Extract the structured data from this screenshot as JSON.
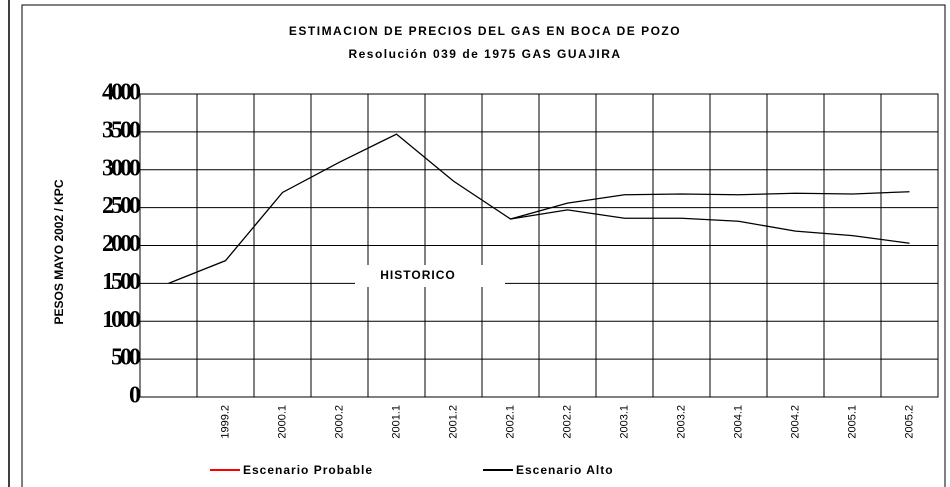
{
  "chart_data": {
    "type": "line",
    "title": "ESTIMACION DE PRECIOS DEL GAS EN BOCA DE POZO",
    "subtitle": "Resolución 039 de 1975 GAS GUAJIRA",
    "y_label": "PESOS MAYO 2002 / KPC",
    "annotation": "HISTORICO",
    "categories": [
      null,
      "1999.2",
      "2000.1",
      "2000.2",
      "2001.1",
      "2001.2",
      "2002.1",
      "2002.2",
      "2003.1",
      "2003.2",
      "2004.1",
      "2004.2",
      "2005.1",
      "2005.2"
    ],
    "series": [
      {
        "name": "Escenario Probable",
        "color": "#ff0000",
        "line_color": "#000000",
        "values": [
          null,
          null,
          null,
          null,
          null,
          null,
          2350,
          2470,
          2360,
          2360,
          2320,
          2190,
          2130,
          2030
        ]
      },
      {
        "name": "Escenario Alto",
        "color": "#000000",
        "line_color": "#000000",
        "values": [
          1500,
          1800,
          2700,
          3100,
          3470,
          2850,
          2350,
          2560,
          2670,
          2680,
          2670,
          2690,
          2680,
          2710
        ]
      }
    ],
    "ylim": [
      0,
      4000
    ],
    "yticks": [
      0,
      500,
      1000,
      1500,
      2000,
      2500,
      3000,
      3500,
      4000
    ],
    "grid": true
  }
}
